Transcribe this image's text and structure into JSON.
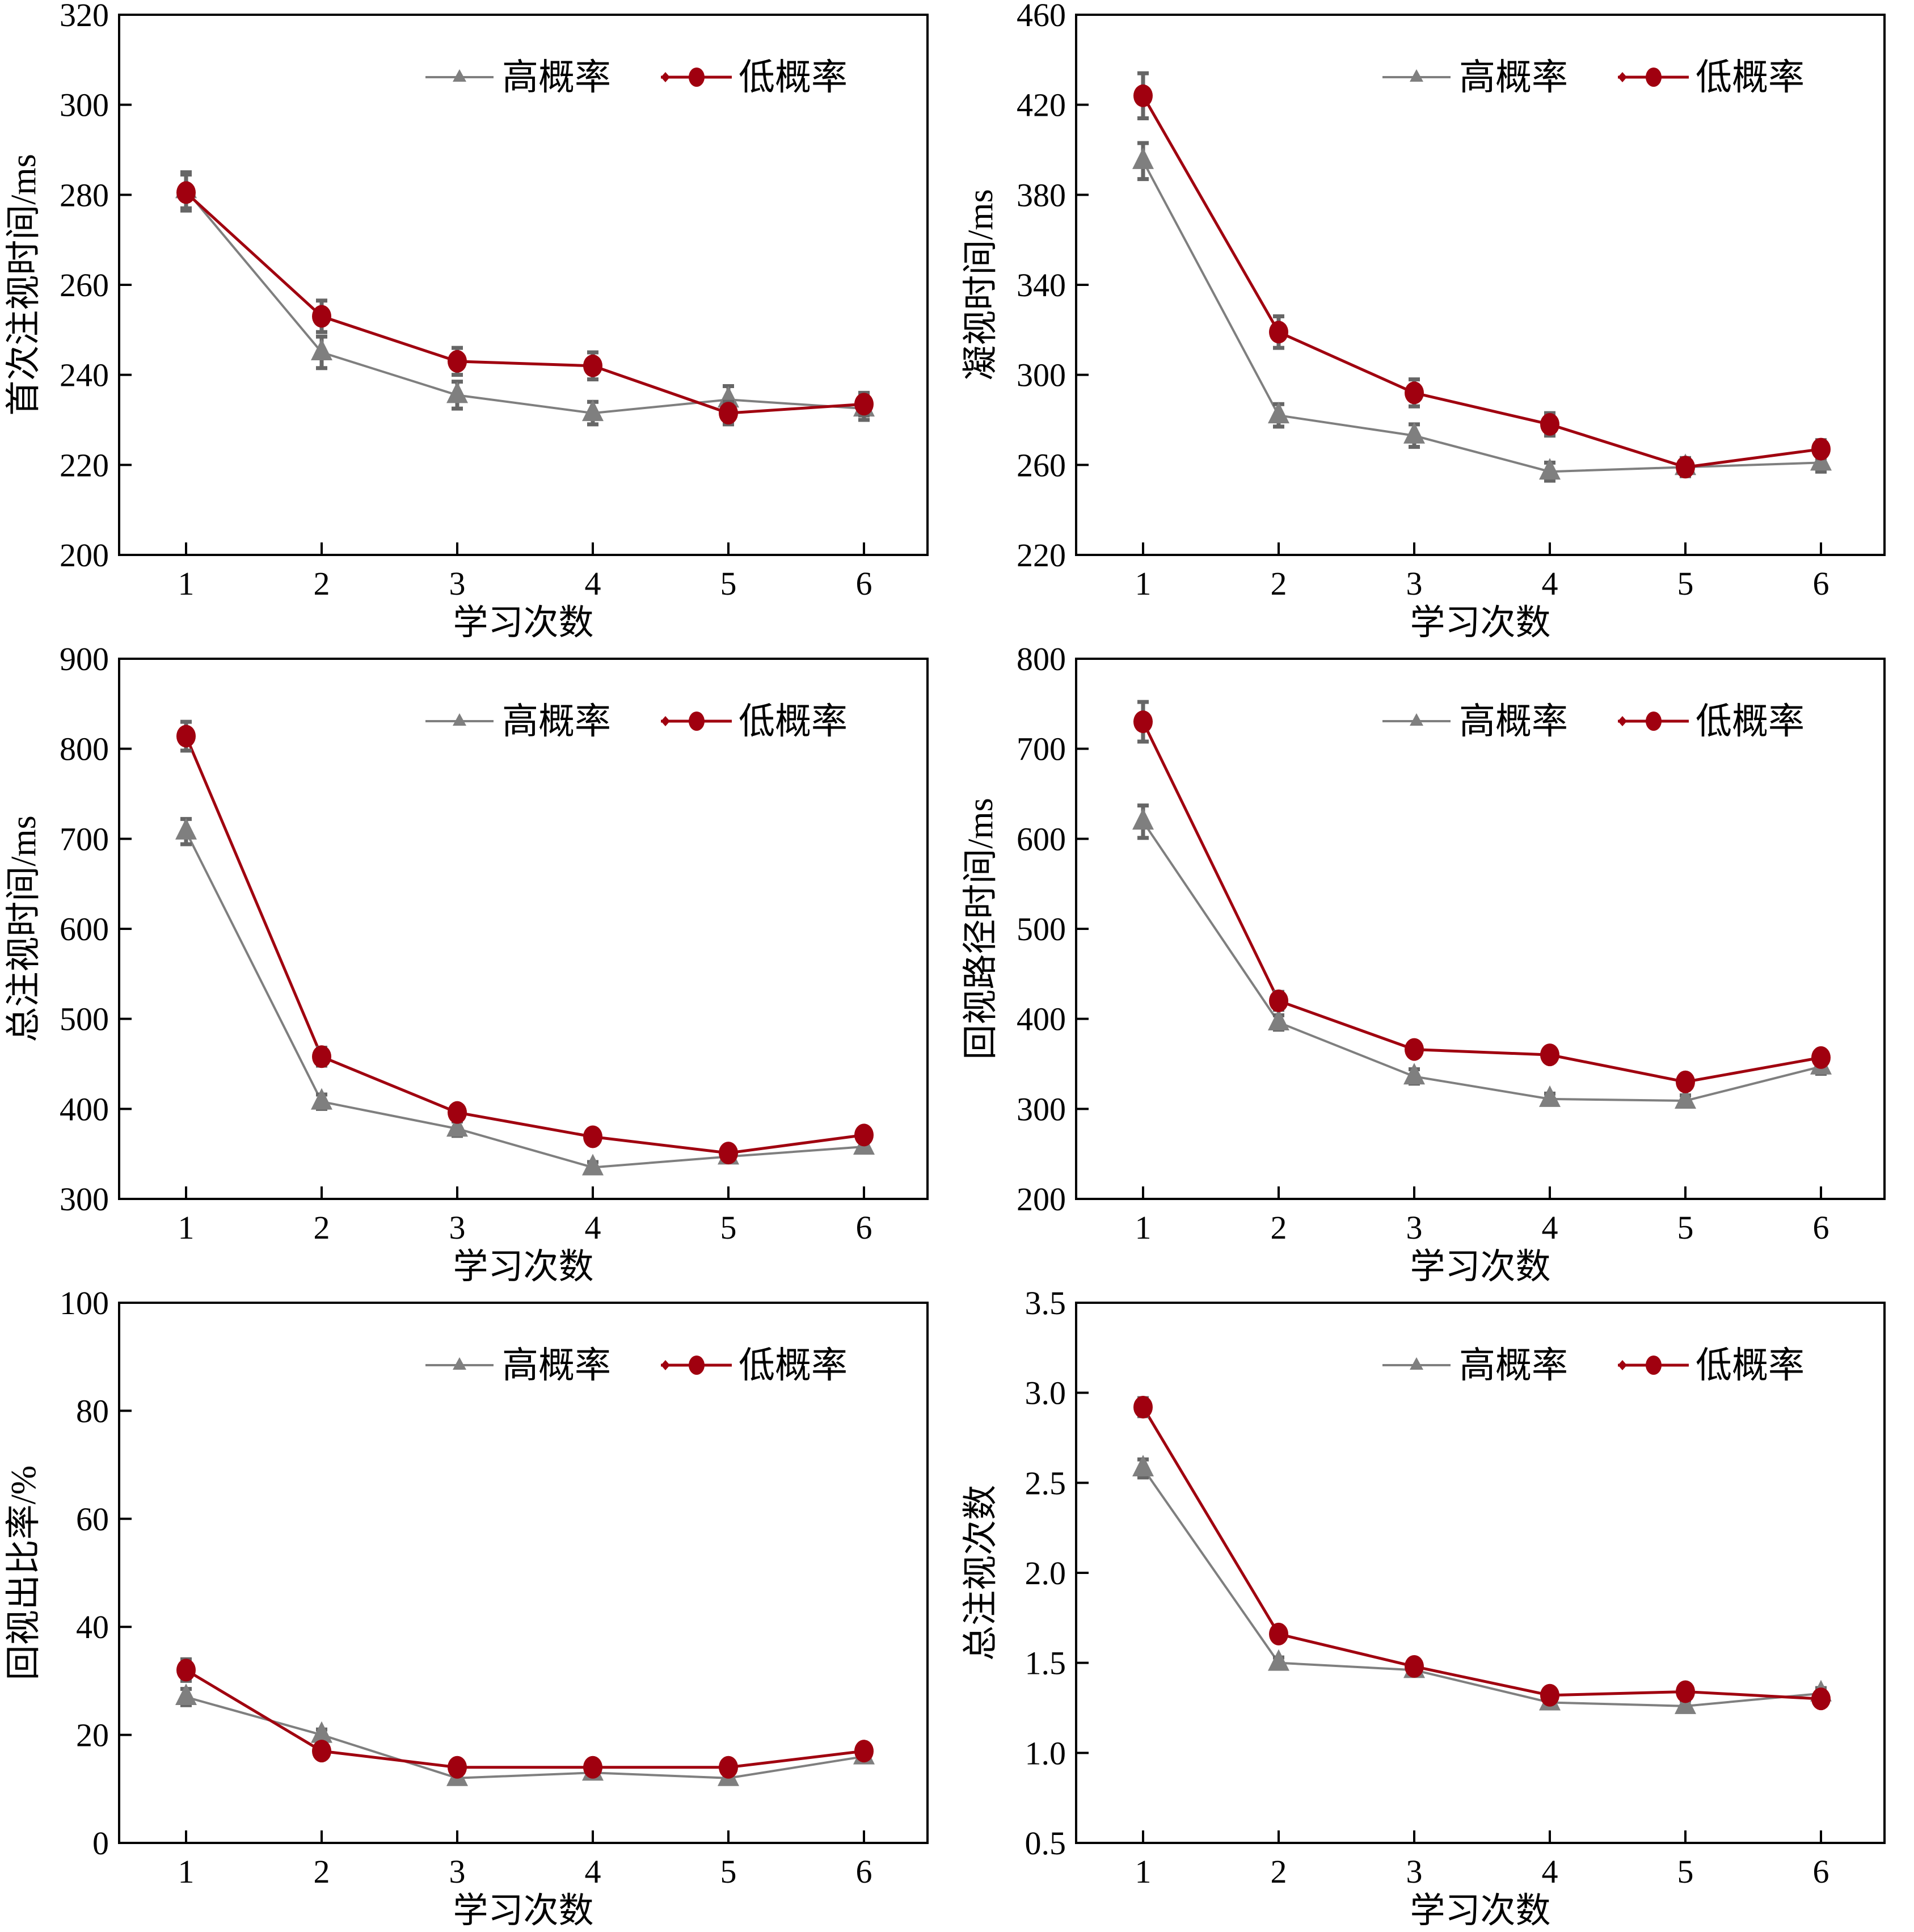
{
  "colors": {
    "high": "#7f7f7f",
    "low": "#a0000f",
    "axis": "#000000"
  },
  "legend": {
    "high": "高概率",
    "low": "低概率",
    "placement": "top-right"
  },
  "chart_data": [
    {
      "type": "line",
      "xlabel": "学习次数",
      "ylabel": "首次注视时间/ms",
      "x": [
        1,
        2,
        3,
        4,
        5,
        6
      ],
      "ylim": [
        200,
        320
      ],
      "yticks": [
        200,
        220,
        240,
        260,
        280,
        300,
        320
      ],
      "series": [
        {
          "name": "高概率",
          "values": [
            281,
            245,
            235.5,
            231.5,
            234.5,
            232.5
          ],
          "error": [
            4,
            3.5,
            3,
            2.5,
            3,
            2.5
          ]
        },
        {
          "name": "低概率",
          "values": [
            280.5,
            253,
            243,
            242,
            231.5,
            233.5
          ],
          "error": [
            4,
            3.5,
            3,
            3,
            2.5,
            2.5
          ]
        }
      ]
    },
    {
      "type": "line",
      "xlabel": "学习次数",
      "ylabel": "凝视时间/ms",
      "x": [
        1,
        2,
        3,
        4,
        5,
        6
      ],
      "ylim": [
        220,
        460
      ],
      "yticks": [
        220,
        260,
        300,
        340,
        380,
        420,
        460
      ],
      "series": [
        {
          "name": "高概率",
          "values": [
            395,
            282,
            273,
            257,
            259,
            261
          ],
          "error": [
            8,
            5,
            5,
            4,
            4,
            4
          ]
        },
        {
          "name": "低概率",
          "values": [
            424,
            319,
            292,
            278,
            259,
            267
          ],
          "error": [
            10,
            7,
            6,
            5,
            4,
            4
          ]
        }
      ]
    },
    {
      "type": "line",
      "xlabel": "学习次数",
      "ylabel": "总注视时间/ms",
      "x": [
        1,
        2,
        3,
        4,
        5,
        6
      ],
      "ylim": [
        300,
        900
      ],
      "yticks": [
        300,
        400,
        500,
        600,
        700,
        800,
        900
      ],
      "series": [
        {
          "name": "高概率",
          "values": [
            708,
            408,
            378,
            335,
            347,
            358
          ],
          "error": [
            14,
            8,
            8,
            6,
            6,
            6
          ]
        },
        {
          "name": "低概率",
          "values": [
            814,
            458,
            396,
            369,
            351,
            371
          ],
          "error": [
            16,
            10,
            8,
            8,
            6,
            8
          ]
        }
      ]
    },
    {
      "type": "line",
      "xlabel": "学习次数",
      "ylabel": "回视路径时间/ms",
      "x": [
        1,
        2,
        3,
        4,
        5,
        6
      ],
      "ylim": [
        200,
        800
      ],
      "yticks": [
        200,
        300,
        400,
        500,
        600,
        700,
        800
      ],
      "series": [
        {
          "name": "高概率",
          "values": [
            619,
            396,
            336,
            311,
            309,
            347
          ],
          "error": [
            18,
            8,
            8,
            6,
            6,
            8
          ]
        },
        {
          "name": "低概率",
          "values": [
            730,
            420,
            366,
            360,
            330,
            357
          ],
          "error": [
            22,
            10,
            8,
            8,
            8,
            8
          ]
        }
      ]
    },
    {
      "type": "line",
      "xlabel": "学习次数",
      "ylabel": "回视出比率/%",
      "x": [
        1,
        2,
        3,
        4,
        5,
        6
      ],
      "ylim": [
        0,
        100
      ],
      "yticks": [
        0,
        20,
        40,
        60,
        80,
        100
      ],
      "series": [
        {
          "name": "高概率",
          "values": [
            27,
            20,
            12,
            13,
            12,
            16
          ],
          "error": [
            1.5,
            1,
            1,
            1,
            1,
            1
          ]
        },
        {
          "name": "低概率",
          "values": [
            32,
            17,
            14,
            14,
            14,
            17
          ],
          "error": [
            2,
            1,
            1,
            1,
            1,
            1
          ]
        }
      ]
    },
    {
      "type": "line",
      "xlabel": "学习次数",
      "ylabel": "总注视次数",
      "x": [
        1,
        2,
        3,
        4,
        5,
        6
      ],
      "ylim": [
        0.5,
        3.5
      ],
      "yticks": [
        "0.5",
        "1.0",
        "1.5",
        "2.0",
        "2.5",
        "3.0",
        "3.5"
      ],
      "series": [
        {
          "name": "高概率",
          "values": [
            2.58,
            1.5,
            1.46,
            1.28,
            1.26,
            1.33
          ],
          "error": [
            0.05,
            0.03,
            0.03,
            0.03,
            0.03,
            0.03
          ]
        },
        {
          "name": "低概率",
          "values": [
            2.92,
            1.66,
            1.48,
            1.32,
            1.34,
            1.3
          ],
          "error": [
            0.05,
            0.03,
            0.03,
            0.03,
            0.03,
            0.03
          ]
        }
      ]
    }
  ]
}
